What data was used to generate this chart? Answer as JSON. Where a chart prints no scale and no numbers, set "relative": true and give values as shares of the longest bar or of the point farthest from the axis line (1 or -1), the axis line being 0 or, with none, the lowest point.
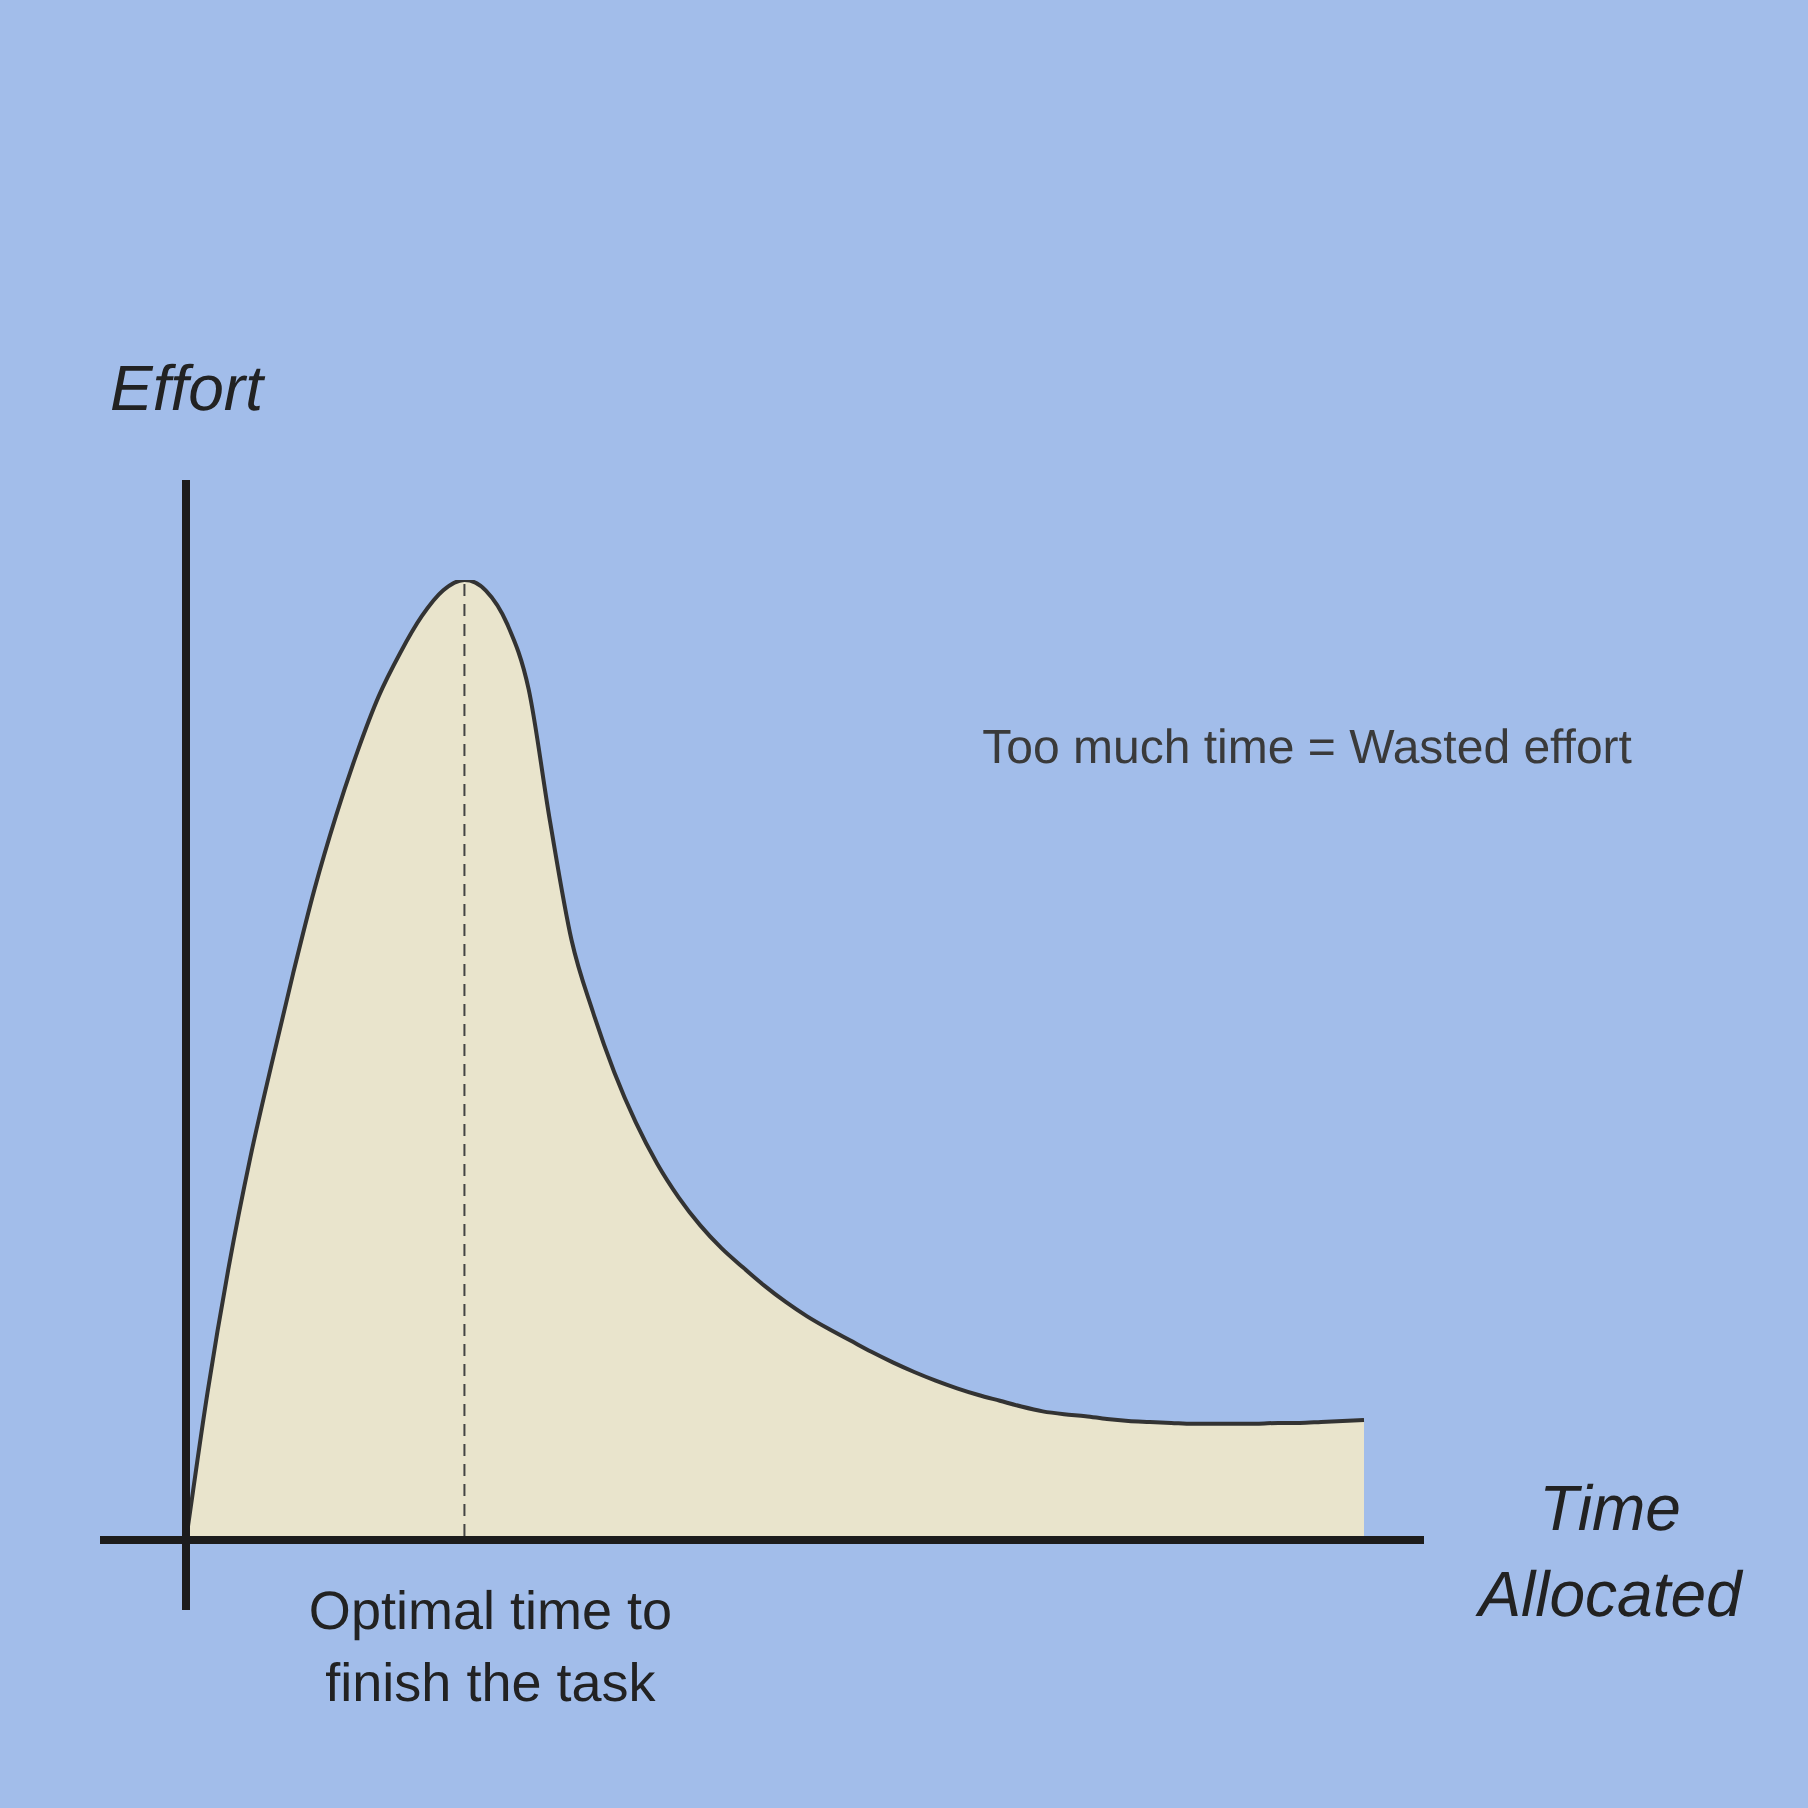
{
  "chart_data": {
    "type": "area",
    "relative": true,
    "color": "#e9e4cc",
    "xlabel": "Time Allocated",
    "ylabel": "Effort",
    "annotations": [
      "Too much time = Wasted effort",
      "Optimal time to finish the task"
    ],
    "categories": [
      null,
      null,
      null,
      null,
      null,
      null,
      null,
      null,
      null,
      null,
      null,
      null,
      null,
      null,
      null,
      null,
      null,
      null,
      null,
      null,
      null,
      null,
      null,
      null,
      null,
      null,
      null,
      null,
      null,
      null,
      null,
      null,
      null,
      null,
      null,
      null,
      null,
      null,
      null,
      null,
      null,
      null,
      null,
      null,
      null,
      null,
      null,
      null,
      null,
      null,
      null,
      null,
      null,
      null,
      null,
      null
    ],
    "values": [
      0,
      0.153,
      0.285,
      0.398,
      0.496,
      0.59,
      0.678,
      0.754,
      0.821,
      0.879,
      0.924,
      0.962,
      0.989,
      1,
      0.989,
      0.954,
      0.886,
      0.748,
      0.625,
      0.55,
      0.487,
      0.435,
      0.392,
      0.357,
      0.328,
      0.304,
      0.284,
      0.265,
      0.248,
      0.233,
      0.22,
      0.208,
      0.196,
      0.185,
      0.175,
      0.166,
      0.158,
      0.151,
      0.145,
      0.139,
      0.134,
      0.131,
      0.129,
      0.126,
      0.124,
      0.123,
      0.122,
      0.121,
      0.121,
      0.121,
      0.121,
      0.122,
      0.122,
      0.123,
      0.124,
      0.125
    ]
  }
}
